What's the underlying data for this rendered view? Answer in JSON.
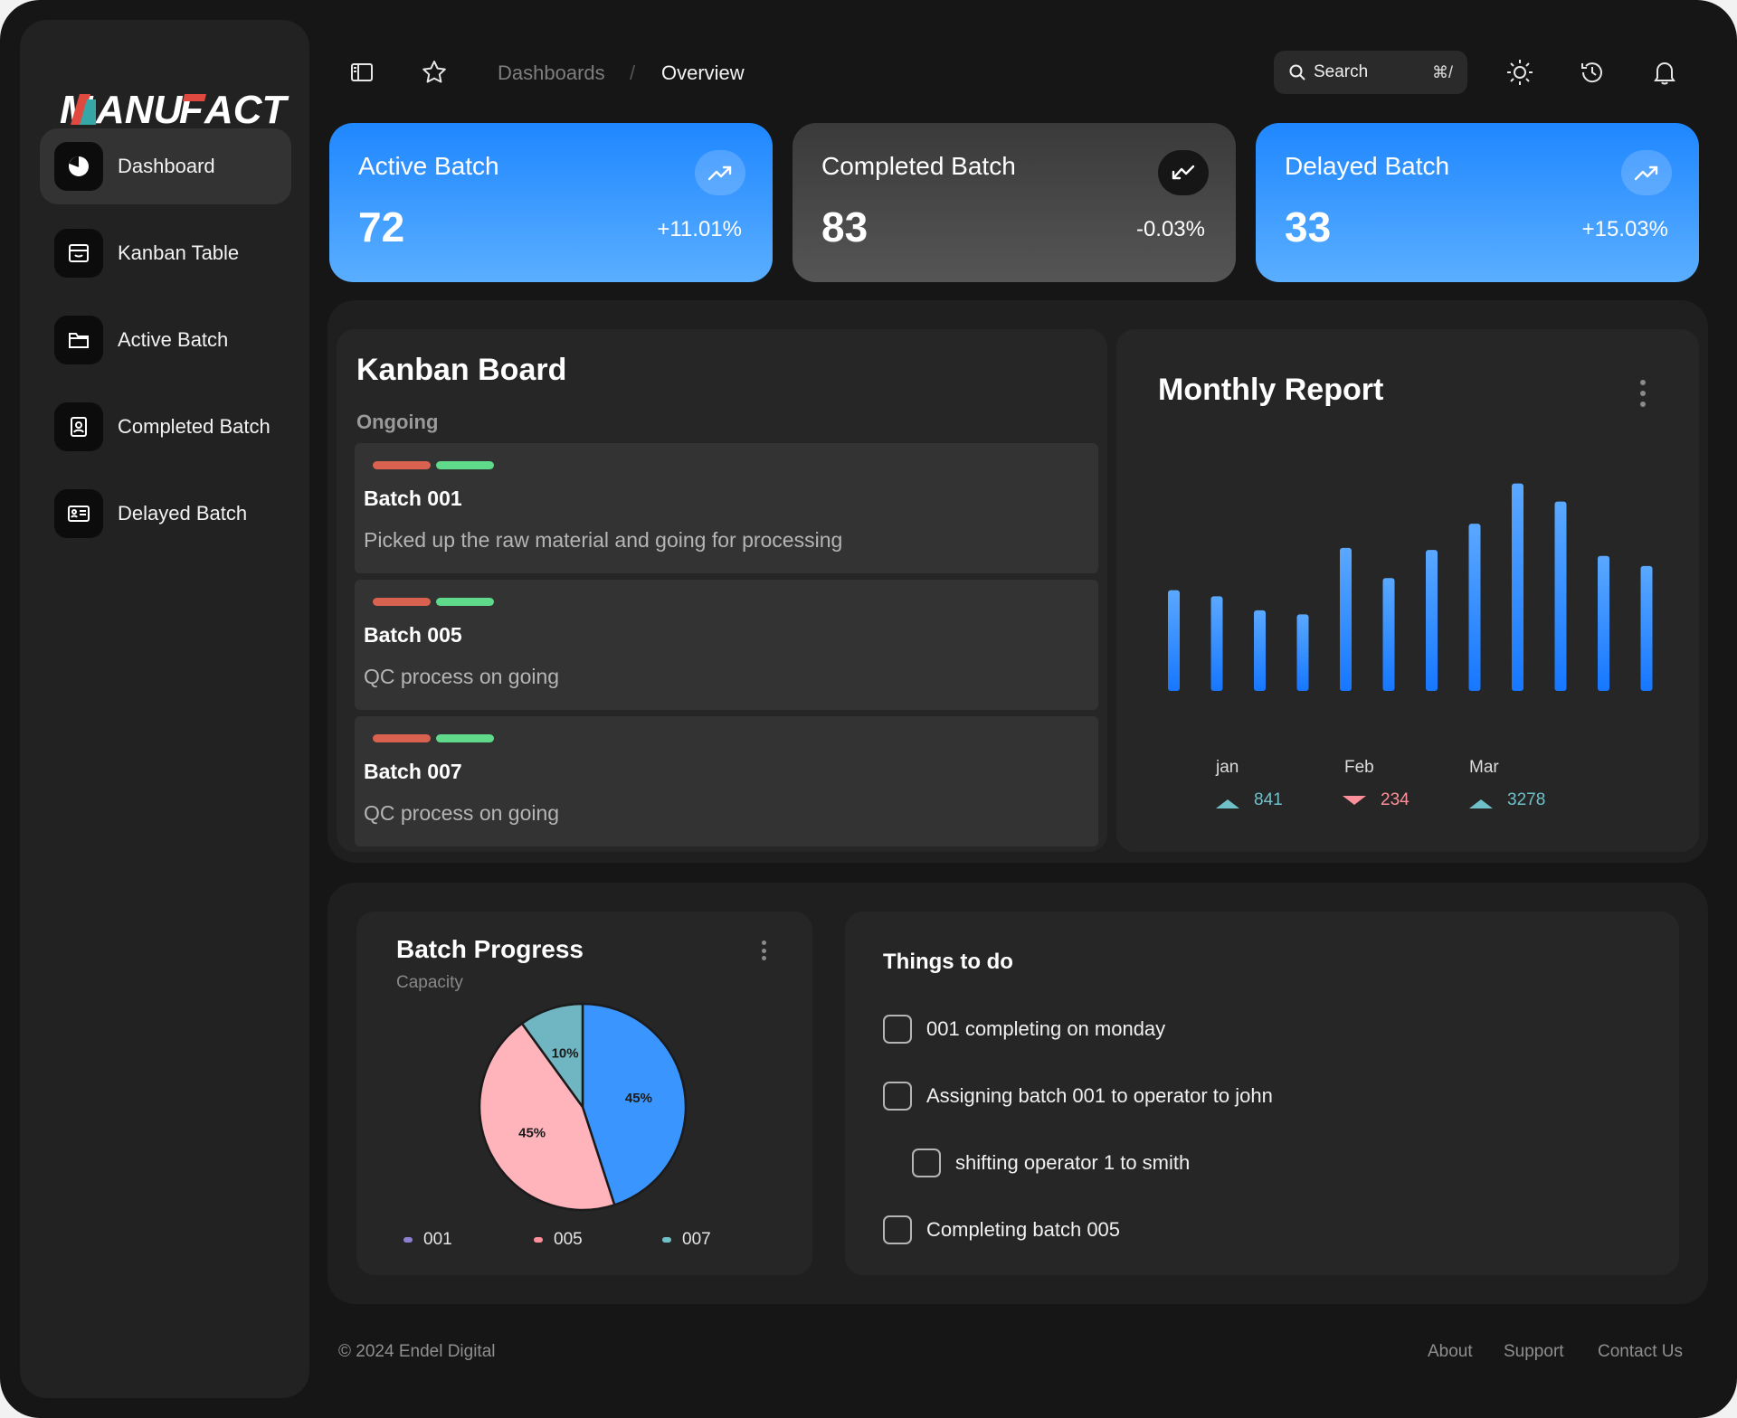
{
  "brand": {
    "name": "MANUFACT",
    "part1": "M",
    "part2": "ANU",
    "part3": "F",
    "part4": "ACT"
  },
  "sidebar": {
    "items": [
      {
        "label": "Dashboard",
        "icon": "pie-chart-icon",
        "active": true
      },
      {
        "label": "Kanban Table",
        "icon": "inbox-icon",
        "active": false
      },
      {
        "label": "Active Batch",
        "icon": "folder-icon",
        "active": false
      },
      {
        "label": "Completed Batch",
        "icon": "badge-icon",
        "active": false
      },
      {
        "label": "Delayed Batch",
        "icon": "id-card-icon",
        "active": false
      }
    ]
  },
  "header": {
    "breadcrumb_root": "Dashboards",
    "breadcrumb_sep": "/",
    "breadcrumb_current": "Overview",
    "search_label": "Search",
    "search_shortcut": "⌘/"
  },
  "stats": [
    {
      "title": "Active Batch",
      "value": "72",
      "change": "+11.01%",
      "trend": "up"
    },
    {
      "title": "Completed Batch",
      "value": "83",
      "change": "-0.03%",
      "trend": "down"
    },
    {
      "title": "Delayed Batch",
      "value": "33",
      "change": "+15.03%",
      "trend": "up"
    }
  ],
  "kanban": {
    "title": "Kanban Board",
    "column": "Ongoing",
    "items": [
      {
        "name": "Batch 001",
        "desc": "Picked up the raw material and going for processing"
      },
      {
        "name": "Batch 005",
        "desc": "QC process on going"
      },
      {
        "name": "Batch 007",
        "desc": "QC process on going"
      }
    ],
    "tag_colors": [
      "#d9614f",
      "#5fd98a"
    ]
  },
  "monthly_report": {
    "title": "Monthly Report",
    "summary": [
      {
        "month": "jan",
        "value": "841",
        "trend": "up"
      },
      {
        "month": "Feb",
        "value": "234",
        "trend": "down"
      },
      {
        "month": "Mar",
        "value": "3278",
        "trend": "up"
      }
    ]
  },
  "chart_data": [
    {
      "type": "bar",
      "title": "Monthly Report",
      "values": [
        50,
        47,
        40,
        38,
        71,
        56,
        70,
        83,
        103,
        94,
        67,
        62
      ],
      "ylim": [
        0,
        110
      ],
      "grid": false,
      "color": "#2f8cff"
    },
    {
      "type": "pie",
      "title": "Batch Progress",
      "subtitle": "Capacity",
      "labels": [
        "001",
        "005",
        "007"
      ],
      "values": [
        45,
        45,
        10
      ],
      "value_labels": [
        "45%",
        "45%",
        "10%"
      ],
      "colors": [
        "#3b95ff",
        "#ffb3bb",
        "#6fb6c2"
      ],
      "legend_colors": [
        "#8e7fd0",
        "#ff8f9a",
        "#6fc0c8"
      ],
      "legend": "bottom"
    }
  ],
  "batch_progress": {
    "title": "Batch Progress",
    "subtitle": "Capacity"
  },
  "todo": {
    "title": "Things to do",
    "items": [
      {
        "label": "001 completing on monday",
        "checked": false,
        "indent": 0
      },
      {
        "label": "Assigning batch 001 to operator to john",
        "checked": false,
        "indent": 0
      },
      {
        "label": "shifting operator 1 to smith",
        "checked": false,
        "indent": 1
      },
      {
        "label": "Completing batch 005",
        "checked": false,
        "indent": 0
      }
    ]
  },
  "footer": {
    "copyright": "© 2024 Endel Digital",
    "links": [
      "About",
      "Support",
      "Contact Us"
    ]
  },
  "colors": {
    "accent": "#1f87ff",
    "up": "#6fc0c8",
    "down": "#ff8f9a"
  }
}
